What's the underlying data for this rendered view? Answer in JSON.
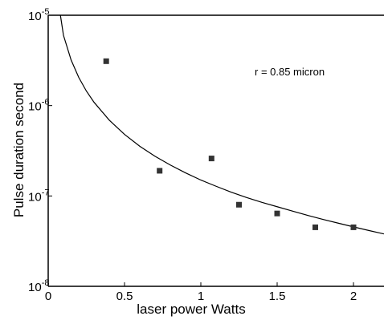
{
  "chart_data": {
    "type": "scatter",
    "title": "",
    "xlabel": "laser power   Watts",
    "ylabel": "Pulse duration   second",
    "xlim": [
      0,
      2.2
    ],
    "ylim": [
      1e-08,
      1e-05
    ],
    "yscale": "log",
    "grid": false,
    "x_ticks": [
      {
        "value": 0,
        "label": "0"
      },
      {
        "value": 0.5,
        "label": "0.5"
      },
      {
        "value": 1,
        "label": "1"
      },
      {
        "value": 1.5,
        "label": "1.5"
      },
      {
        "value": 2,
        "label": "2"
      }
    ],
    "y_ticks": [
      {
        "value": 1e-08,
        "base": "10",
        "exp": "-8"
      },
      {
        "value": 1e-07,
        "base": "10",
        "exp": "-7"
      },
      {
        "value": 1e-06,
        "base": "10",
        "exp": "-6"
      },
      {
        "value": 1e-05,
        "base": "10",
        "exp": "-5"
      }
    ],
    "series": [
      {
        "type": "scatter",
        "marker": "square",
        "color": "#333333",
        "x": [
          0.38,
          0.73,
          1.07,
          1.25,
          1.5,
          1.75,
          2.0
        ],
        "y": [
          3.1e-06,
          1.9e-07,
          2.6e-07,
          8e-08,
          6.4e-08,
          4.5e-08,
          4.5e-08
        ]
      },
      {
        "type": "line",
        "color": "#000000",
        "x": [
          0.08,
          0.1,
          0.15,
          0.2,
          0.25,
          0.3,
          0.4,
          0.5,
          0.6,
          0.7,
          0.8,
          0.9,
          1.0,
          1.1,
          1.2,
          1.3,
          1.4,
          1.5,
          1.6,
          1.7,
          1.8,
          1.9,
          2.0,
          2.1,
          2.2
        ],
        "y": [
          1e-05,
          6e-06,
          3.2e-06,
          2.05e-06,
          1.45e-06,
          1.09e-06,
          6.9e-07,
          4.8e-07,
          3.55e-07,
          2.75e-07,
          2.2e-07,
          1.8e-07,
          1.5e-07,
          1.28e-07,
          1.1e-07,
          9.6e-08,
          8.5e-08,
          7.6e-08,
          6.8e-08,
          6.1e-08,
          5.5e-08,
          5e-08,
          4.55e-08,
          4.15e-08,
          3.8e-08
        ]
      }
    ],
    "annotations": [
      {
        "text": "r = 0.85 micron"
      }
    ]
  }
}
